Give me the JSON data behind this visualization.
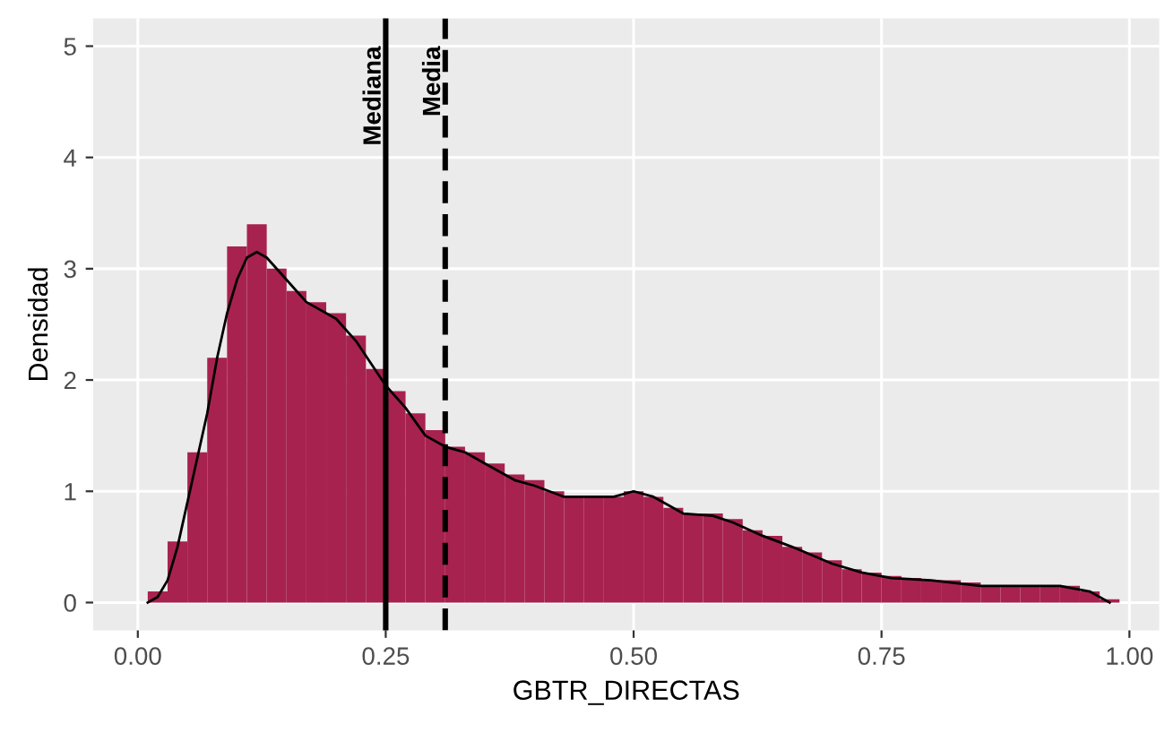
{
  "chart_data": {
    "type": "histogram",
    "xlabel": "GBTR_DIRECTAS",
    "ylabel": "Densidad",
    "bins": [
      0.01,
      0.03,
      0.05,
      0.07,
      0.09,
      0.11,
      0.13,
      0.15,
      0.17,
      0.19,
      0.21,
      0.23,
      0.25,
      0.27,
      0.29,
      0.31,
      0.33,
      0.35,
      0.37,
      0.39,
      0.41,
      0.43,
      0.45,
      0.47,
      0.49,
      0.51,
      0.53,
      0.55,
      0.57,
      0.59,
      0.61,
      0.63,
      0.65,
      0.67,
      0.69,
      0.71,
      0.73,
      0.75,
      0.77,
      0.79,
      0.81,
      0.83,
      0.85,
      0.87,
      0.89,
      0.91,
      0.93,
      0.95,
      0.97,
      0.99
    ],
    "series": [
      {
        "type": "histogram",
        "color": "#a8224f",
        "values": [
          0.1,
          0.55,
          1.35,
          2.2,
          3.2,
          3.4,
          3.0,
          2.8,
          2.7,
          2.6,
          2.4,
          2.1,
          1.9,
          1.7,
          1.55,
          1.4,
          1.35,
          1.25,
          1.15,
          1.1,
          1.0,
          0.95,
          0.95,
          0.95,
          1.0,
          0.95,
          0.85,
          0.8,
          0.8,
          0.75,
          0.65,
          0.6,
          0.5,
          0.45,
          0.38,
          0.3,
          0.27,
          0.24,
          0.22,
          0.2,
          0.2,
          0.18,
          0.15,
          0.15,
          0.15,
          0.15,
          0.15,
          0.1,
          0.03
        ]
      },
      {
        "type": "line",
        "color": "#000000",
        "x": [
          0.01,
          0.02,
          0.03,
          0.04,
          0.05,
          0.06,
          0.07,
          0.08,
          0.09,
          0.1,
          0.11,
          0.12,
          0.13,
          0.15,
          0.17,
          0.2,
          0.22,
          0.25,
          0.27,
          0.29,
          0.31,
          0.33,
          0.35,
          0.38,
          0.4,
          0.43,
          0.45,
          0.48,
          0.5,
          0.52,
          0.55,
          0.58,
          0.6,
          0.63,
          0.66,
          0.7,
          0.73,
          0.76,
          0.8,
          0.85,
          0.9,
          0.93,
          0.96,
          0.98
        ],
        "values": [
          0,
          0.05,
          0.2,
          0.5,
          0.9,
          1.3,
          1.7,
          2.2,
          2.6,
          2.9,
          3.1,
          3.15,
          3.1,
          2.9,
          2.7,
          2.55,
          2.35,
          1.95,
          1.75,
          1.5,
          1.4,
          1.35,
          1.25,
          1.1,
          1.05,
          0.95,
          0.95,
          0.95,
          1.0,
          0.95,
          0.8,
          0.78,
          0.72,
          0.6,
          0.5,
          0.35,
          0.27,
          0.22,
          0.2,
          0.15,
          0.15,
          0.15,
          0.1,
          0.0
        ]
      }
    ],
    "xlim": [
      -0.045,
      1.03
    ],
    "ylim": [
      -0.25,
      5.25
    ],
    "xticks": [
      {
        "value": 0,
        "label": "0.00"
      },
      {
        "value": 0.25,
        "label": "0.25"
      },
      {
        "value": 0.5,
        "label": "0.50"
      },
      {
        "value": 0.75,
        "label": "0.75"
      },
      {
        "value": 1,
        "label": "1.00"
      }
    ],
    "yticks": [
      0,
      1,
      2,
      3,
      4,
      5
    ],
    "grid": true,
    "ref_lines": [
      {
        "axis": "x",
        "value": 0.25,
        "label": "Mediana",
        "color": "#000000",
        "line_style": "solid"
      },
      {
        "axis": "x",
        "value": 0.31,
        "label": "Media",
        "color": "#000000",
        "line_style": "dashed"
      }
    ]
  }
}
